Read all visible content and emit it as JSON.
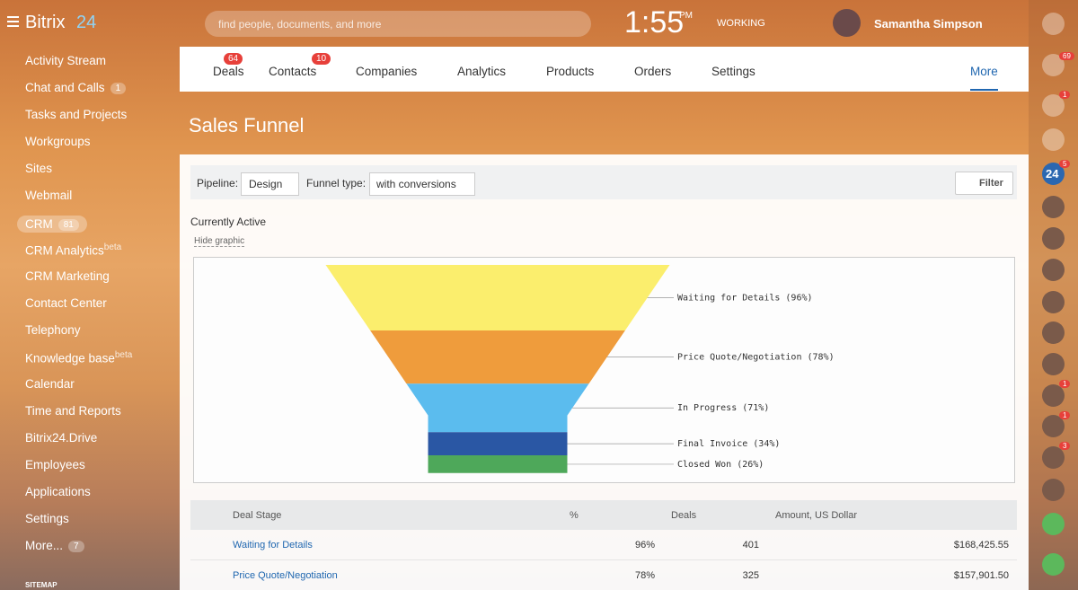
{
  "header": {
    "logo": "Bitrix",
    "logo_num": "24",
    "search_placeholder": "find people, documents, and more",
    "time": "1:55",
    "ampm": "PM",
    "status": "WORKING",
    "user": "Samantha Simpson"
  },
  "sidebar": {
    "items": [
      {
        "label": "Activity Stream"
      },
      {
        "label": "Chat and Calls",
        "badge": "1"
      },
      {
        "label": "Tasks and Projects"
      },
      {
        "label": "Workgroups"
      },
      {
        "label": "Sites"
      },
      {
        "label": "Webmail"
      },
      {
        "label": "CRM",
        "badge": "81",
        "active": true
      },
      {
        "label": "CRM Analytics",
        "sup": "beta"
      },
      {
        "label": "CRM Marketing"
      },
      {
        "label": "Contact Center"
      },
      {
        "label": "Telephony"
      },
      {
        "label": "Knowledge base",
        "sup": "beta"
      },
      {
        "label": "Calendar"
      },
      {
        "label": "Time and Reports"
      },
      {
        "label": "Bitrix24.Drive"
      },
      {
        "label": "Employees"
      },
      {
        "label": "Applications"
      },
      {
        "label": "Settings"
      },
      {
        "label": "More...",
        "badge": "7"
      }
    ],
    "sitemap": "SITEMAP"
  },
  "tabs": [
    {
      "label": "Deals",
      "badge": "64"
    },
    {
      "label": "Contacts",
      "badge": "10"
    },
    {
      "label": "Companies"
    },
    {
      "label": "Analytics"
    },
    {
      "label": "Products"
    },
    {
      "label": "Orders"
    },
    {
      "label": "Settings"
    }
  ],
  "more": "More",
  "page_title": "Sales Funnel",
  "filter": {
    "pipeline_label": "Pipeline:",
    "pipeline": "Design",
    "funnel_type_label": "Funnel type:",
    "funnel_type": "with conversions",
    "button": "Filter"
  },
  "section_title": "Currently Active",
  "hide_graphic": "Hide graphic",
  "funnel": {
    "stages": [
      {
        "label": "Waiting for Details (96%)",
        "value": 96,
        "color": "#fbee6d"
      },
      {
        "label": "Price Quote/Negotiation (78%)",
        "value": 78,
        "color": "#ef9c3c"
      },
      {
        "label": "In Progress (71%)",
        "value": 71,
        "color": "#5bbcee"
      },
      {
        "label": "Final Invoice (34%)",
        "value": 34,
        "color": "#2a57a4"
      },
      {
        "label": "Closed Won (26%)",
        "value": 26,
        "color": "#4ea85a"
      }
    ]
  },
  "table": {
    "headers": [
      "Deal Stage",
      "%",
      "Deals",
      "Amount, US Dollar"
    ],
    "rows": [
      [
        "Waiting for Details",
        "96%",
        "401",
        "$168,425.55"
      ],
      [
        "Price Quote/Negotiation",
        "78%",
        "325",
        "$157,901.50"
      ]
    ]
  },
  "rail": {
    "badges": [
      "69",
      "1",
      "5",
      "1",
      "1",
      "3"
    ],
    "b24": "24"
  }
}
